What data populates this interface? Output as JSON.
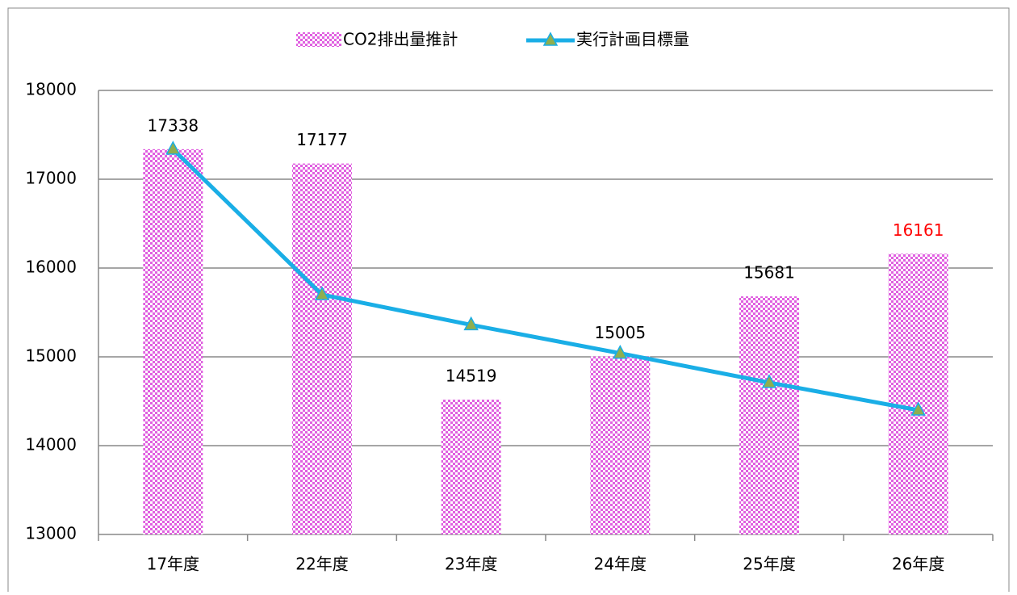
{
  "chart_data": {
    "type": "bar_line",
    "categories": [
      "17年度",
      "22年度",
      "23年度",
      "24年度",
      "25年度",
      "26年度"
    ],
    "series": [
      {
        "name": "CO2排出量推計",
        "type": "bar",
        "color": "#e060e0",
        "values": [
          17338,
          17177,
          14519,
          15005,
          15681,
          16161
        ],
        "label_colors": [
          "#000000",
          "#000000",
          "#000000",
          "#000000",
          "#000000",
          "#ff0000"
        ]
      },
      {
        "name": "実行計画目標量",
        "type": "line",
        "color": "#1aaee6",
        "marker_color": "#8fae4f",
        "values": [
          17338,
          15700,
          15360,
          15040,
          14710,
          14400
        ]
      }
    ],
    "ylim": [
      13000,
      18000
    ],
    "yticks": [
      13000,
      14000,
      15000,
      16000,
      17000,
      18000
    ],
    "grid": true,
    "legend": "top"
  }
}
